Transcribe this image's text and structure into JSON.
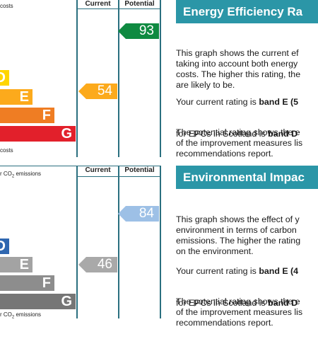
{
  "energy": {
    "top_label": "costs",
    "bottom_label": "costs",
    "col_current": "Current",
    "col_potential": "Potential",
    "bands": [
      {
        "letter": "D",
        "color": "#ffd500"
      },
      {
        "letter": "E",
        "color": "#fcaa1c"
      },
      {
        "letter": "F",
        "color": "#ef7d23"
      },
      {
        "letter": "G",
        "color": "#e2202b"
      }
    ],
    "current_rating": "54",
    "current_color": "#fcaa1c",
    "potential_rating": "93",
    "potential_color": "#0f8a41",
    "title": "Energy Efficiency Ra",
    "p1_lines": [
      "This graph shows the current ef",
      "taking into account both energy",
      "costs. The higher this rating, the",
      "are likely to be."
    ],
    "p2_line1_pre": "Your current rating is ",
    "p2_line1_bold": "band E (5",
    "p2_line2_pre": "for EPCs in Scotland is ",
    "p2_line2_bold": "band D",
    "p3_lines": [
      "The potential rating shows the e",
      "of the improvement measures lis",
      "recommendations report."
    ]
  },
  "environmental": {
    "top_label_prefix": "r CO",
    "top_label_sub": "2",
    "top_label_suffix": " emissions",
    "bottom_label_prefix": "r CO",
    "bottom_label_sub": "2",
    "bottom_label_suffix": " emissions",
    "col_current": "Current",
    "col_potential": "Potential",
    "bands": [
      {
        "letter": "D",
        "color": "#2f67b0"
      },
      {
        "letter": "E",
        "color": "#a3a3a3"
      },
      {
        "letter": "F",
        "color": "#8d8d8d"
      },
      {
        "letter": "G",
        "color": "#767676"
      }
    ],
    "current_rating": "46",
    "current_color": "#a9a9a9",
    "potential_rating": "84",
    "potential_color": "#9dc0e6",
    "title": "Environmental Impac",
    "p1_lines": [
      "This graph shows the effect of y",
      "environment in terms of carbon",
      "emissions. The higher the rating",
      "on the environment."
    ],
    "p2_line1_pre": "Your current rating is ",
    "p2_line1_bold": "band E (4",
    "p2_line2_pre": "for EPCs in Scotland is ",
    "p2_line2_bold": "band D",
    "p3_lines": [
      "The potential rating shows the e",
      "of the improvement measures lis",
      "recommendations report."
    ]
  }
}
